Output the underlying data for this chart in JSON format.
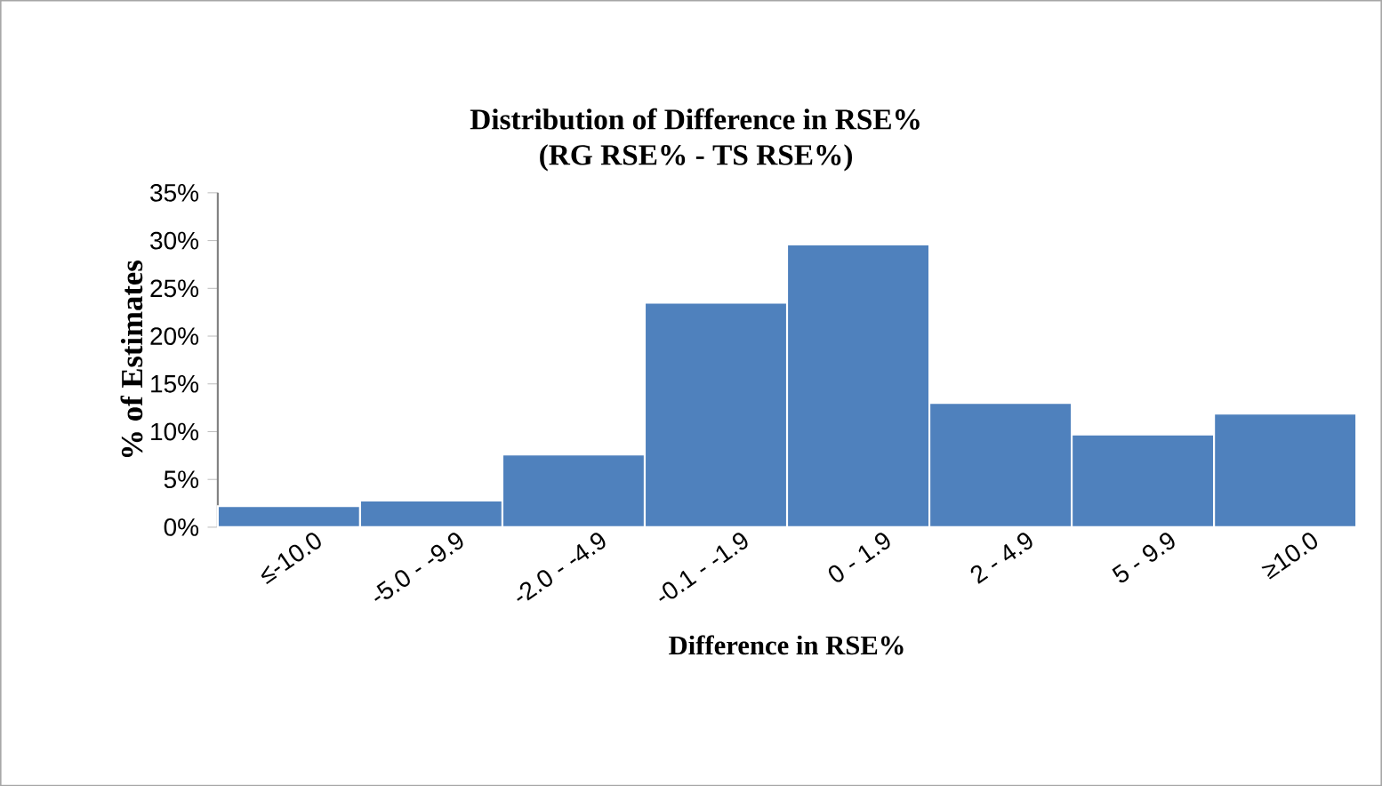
{
  "chart_data": {
    "type": "bar",
    "title": "Distribution of Difference in RSE%",
    "subtitle": "(RG RSE% - TS RSE%)",
    "xlabel": "Difference in RSE%",
    "ylabel": "% of Estimates",
    "categories": [
      "≤-10.0",
      "-5.0 - -9.9",
      "-2.0 - -4.9",
      "-0.1 - -1.9",
      "0 - 1.9",
      "2 - 4.9",
      "5 - 9.9",
      "≥10.0"
    ],
    "values": [
      2.2,
      2.8,
      7.6,
      23.5,
      29.6,
      13.0,
      9.7,
      11.9
    ],
    "color": "#4f81bd",
    "ylim": [
      0,
      35
    ],
    "yticks": [
      {
        "value": 0,
        "label": "0%"
      },
      {
        "value": 5,
        "label": "5%"
      },
      {
        "value": 10,
        "label": "10%"
      },
      {
        "value": 15,
        "label": "15%"
      },
      {
        "value": 20,
        "label": "20%"
      },
      {
        "value": 25,
        "label": "25%"
      },
      {
        "value": 30,
        "label": "30%"
      },
      {
        "value": 35,
        "label": "35%"
      }
    ],
    "grid": false
  }
}
